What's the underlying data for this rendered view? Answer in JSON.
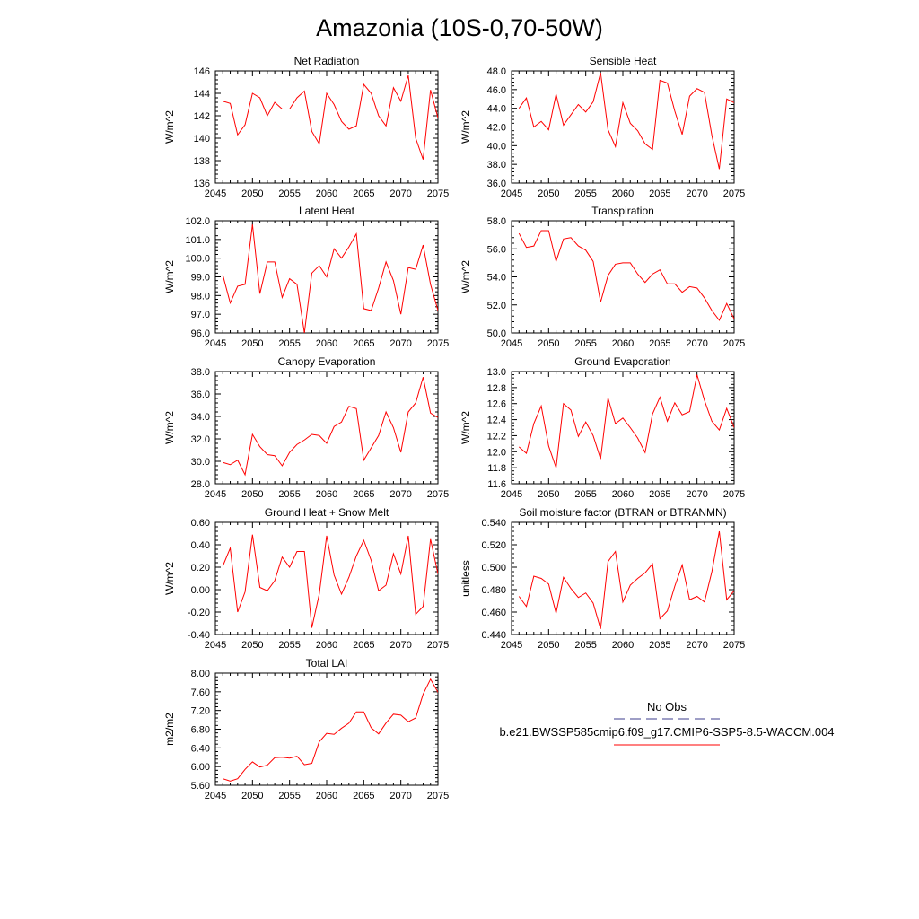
{
  "page": {
    "title": "Amazonia (10S-0,70-50W)"
  },
  "legend": {
    "obs_label": "No Obs",
    "case_label": "b.e21.BWSSP585cmip6.f09_g17.CMIP6-SSP5-8.5-WACCM.004",
    "obs_color": "#3c3c8c",
    "case_color": "#ff0000"
  },
  "chart_data": [
    {
      "type": "line",
      "title": "Net Radiation",
      "ylabel": "W/m^2",
      "xlim": [
        2045,
        2075
      ],
      "ylim": [
        136,
        146
      ],
      "xticks": [
        "2045",
        "2050",
        "2055",
        "2060",
        "2065",
        "2070",
        "2075"
      ],
      "yticks": [
        "136",
        "138",
        "140",
        "142",
        "144",
        "146"
      ],
      "x": [
        2046,
        2047,
        2048,
        2049,
        2050,
        2051,
        2052,
        2053,
        2054,
        2055,
        2056,
        2057,
        2058,
        2059,
        2060,
        2061,
        2062,
        2063,
        2064,
        2065,
        2066,
        2067,
        2068,
        2069,
        2070,
        2071,
        2072,
        2073,
        2074,
        2075
      ],
      "series": [
        {
          "name": "b.e21.BWSSP585cmip6.f09_g17.CMIP6-SSP5-8.5-WACCM.004",
          "values": [
            143.3,
            143.1,
            140.3,
            141.2,
            144.0,
            143.6,
            142.0,
            143.2,
            142.6,
            142.6,
            143.6,
            144.2,
            140.6,
            139.5,
            144.0,
            143.0,
            141.5,
            140.8,
            141.1,
            144.8,
            144.0,
            142.0,
            141.1,
            144.5,
            143.3,
            145.6,
            140.0,
            138.1,
            144.3,
            141.8
          ]
        }
      ]
    },
    {
      "type": "line",
      "title": "Sensible Heat",
      "ylabel": "W/m^2",
      "xlim": [
        2045,
        2075
      ],
      "ylim": [
        36.0,
        48.0
      ],
      "xticks": [
        "2045",
        "2050",
        "2055",
        "2060",
        "2065",
        "2070",
        "2075"
      ],
      "yticks": [
        "36.0",
        "38.0",
        "40.0",
        "42.0",
        "44.0",
        "46.0",
        "48.0"
      ],
      "x": [
        2046,
        2047,
        2048,
        2049,
        2050,
        2051,
        2052,
        2053,
        2054,
        2055,
        2056,
        2057,
        2058,
        2059,
        2060,
        2061,
        2062,
        2063,
        2064,
        2065,
        2066,
        2067,
        2068,
        2069,
        2070,
        2071,
        2072,
        2073,
        2074,
        2075
      ],
      "series": [
        {
          "name": "b.e21.BWSSP585cmip6.f09_g17.CMIP6-SSP5-8.5-WACCM.004",
          "values": [
            44.0,
            45.1,
            42.0,
            42.6,
            41.7,
            45.5,
            42.2,
            43.3,
            44.4,
            43.6,
            44.7,
            47.8,
            41.7,
            39.9,
            44.6,
            42.4,
            41.6,
            40.2,
            39.6,
            47.0,
            46.7,
            43.7,
            41.2,
            45.3,
            46.1,
            45.7,
            41.1,
            37.5,
            45.0,
            44.6
          ]
        }
      ]
    },
    {
      "type": "line",
      "title": "Latent Heat",
      "ylabel": "W/m^2",
      "xlim": [
        2045,
        2075
      ],
      "ylim": [
        96.0,
        102.0
      ],
      "xticks": [
        "2045",
        "2050",
        "2055",
        "2060",
        "2065",
        "2070",
        "2075"
      ],
      "yticks": [
        "96.0",
        "97.0",
        "98.0",
        "99.0",
        "100.0",
        "101.0",
        "102.0"
      ],
      "x": [
        2046,
        2047,
        2048,
        2049,
        2050,
        2051,
        2052,
        2053,
        2054,
        2055,
        2056,
        2057,
        2058,
        2059,
        2060,
        2061,
        2062,
        2063,
        2064,
        2065,
        2066,
        2067,
        2068,
        2069,
        2070,
        2071,
        2072,
        2073,
        2074,
        2075
      ],
      "series": [
        {
          "name": "b.e21.BWSSP585cmip6.f09_g17.CMIP6-SSP5-8.5-WACCM.004",
          "values": [
            99.1,
            97.6,
            98.5,
            98.6,
            101.8,
            98.1,
            99.8,
            99.8,
            97.9,
            98.9,
            98.6,
            96.0,
            99.2,
            99.6,
            99.0,
            100.5,
            100.0,
            100.6,
            101.3,
            97.3,
            97.2,
            98.4,
            99.8,
            98.8,
            97.0,
            99.5,
            99.4,
            100.7,
            98.6,
            97.2
          ]
        }
      ]
    },
    {
      "type": "line",
      "title": "Transpiration",
      "ylabel": "W/m^2",
      "xlim": [
        2045,
        2075
      ],
      "ylim": [
        50.0,
        58.0
      ],
      "xticks": [
        "2045",
        "2050",
        "2055",
        "2060",
        "2065",
        "2070",
        "2075"
      ],
      "yticks": [
        "50.0",
        "52.0",
        "54.0",
        "56.0",
        "58.0"
      ],
      "x": [
        2046,
        2047,
        2048,
        2049,
        2050,
        2051,
        2052,
        2053,
        2054,
        2055,
        2056,
        2057,
        2058,
        2059,
        2060,
        2061,
        2062,
        2063,
        2064,
        2065,
        2066,
        2067,
        2068,
        2069,
        2070,
        2071,
        2072,
        2073,
        2074,
        2075
      ],
      "series": [
        {
          "name": "b.e21.BWSSP585cmip6.f09_g17.CMIP6-SSP5-8.5-WACCM.004",
          "values": [
            57.1,
            56.1,
            56.2,
            57.3,
            57.3,
            55.1,
            56.7,
            56.8,
            56.2,
            55.9,
            55.1,
            52.2,
            54.1,
            54.9,
            55.0,
            55.0,
            54.2,
            53.6,
            54.2,
            54.5,
            53.5,
            53.5,
            52.9,
            53.3,
            53.2,
            52.5,
            51.6,
            50.9,
            52.1,
            51.0
          ]
        }
      ]
    },
    {
      "type": "line",
      "title": "Canopy Evaporation",
      "ylabel": "W/m^2",
      "xlim": [
        2045,
        2075
      ],
      "ylim": [
        28.0,
        38.0
      ],
      "xticks": [
        "2045",
        "2050",
        "2055",
        "2060",
        "2065",
        "2070",
        "2075"
      ],
      "yticks": [
        "28.0",
        "30.0",
        "32.0",
        "34.0",
        "36.0",
        "38.0"
      ],
      "x": [
        2046,
        2047,
        2048,
        2049,
        2050,
        2051,
        2052,
        2053,
        2054,
        2055,
        2056,
        2057,
        2058,
        2059,
        2060,
        2061,
        2062,
        2063,
        2064,
        2065,
        2066,
        2067,
        2068,
        2069,
        2070,
        2071,
        2072,
        2073,
        2074,
        2075
      ],
      "series": [
        {
          "name": "b.e21.BWSSP585cmip6.f09_g17.CMIP6-SSP5-8.5-WACCM.004",
          "values": [
            29.9,
            29.7,
            30.1,
            28.8,
            32.4,
            31.3,
            30.6,
            30.5,
            29.6,
            30.8,
            31.5,
            31.9,
            32.4,
            32.3,
            31.6,
            33.1,
            33.5,
            34.9,
            34.7,
            30.1,
            31.2,
            32.3,
            34.4,
            33.0,
            30.8,
            34.4,
            35.2,
            37.5,
            34.3,
            33.9
          ]
        }
      ]
    },
    {
      "type": "line",
      "title": "Ground Evaporation",
      "ylabel": "W/m^2",
      "xlim": [
        2045,
        2075
      ],
      "ylim": [
        11.6,
        13.0
      ],
      "xticks": [
        "2045",
        "2050",
        "2055",
        "2060",
        "2065",
        "2070",
        "2075"
      ],
      "yticks": [
        "11.6",
        "11.8",
        "12.0",
        "12.2",
        "12.4",
        "12.6",
        "12.8",
        "13.0"
      ],
      "x": [
        2046,
        2047,
        2048,
        2049,
        2050,
        2051,
        2052,
        2053,
        2054,
        2055,
        2056,
        2057,
        2058,
        2059,
        2060,
        2061,
        2062,
        2063,
        2064,
        2065,
        2066,
        2067,
        2068,
        2069,
        2070,
        2071,
        2072,
        2073,
        2074,
        2075
      ],
      "series": [
        {
          "name": "b.e21.BWSSP585cmip6.f09_g17.CMIP6-SSP5-8.5-WACCM.004",
          "values": [
            12.06,
            11.98,
            12.35,
            12.57,
            12.07,
            11.8,
            12.6,
            12.52,
            12.19,
            12.37,
            12.2,
            11.91,
            12.67,
            12.35,
            12.42,
            12.3,
            12.17,
            11.99,
            12.47,
            12.68,
            12.38,
            12.61,
            12.46,
            12.5,
            12.96,
            12.64,
            12.38,
            12.27,
            12.54,
            12.3
          ]
        }
      ]
    },
    {
      "type": "line",
      "title": "Ground Heat + Snow Melt",
      "ylabel": "W/m^2",
      "xlim": [
        2045,
        2075
      ],
      "ylim": [
        -0.4,
        0.6
      ],
      "xticks": [
        "2045",
        "2050",
        "2055",
        "2060",
        "2065",
        "2070",
        "2075"
      ],
      "yticks": [
        "-0.40",
        "-0.20",
        "0.00",
        "0.20",
        "0.40",
        "0.60"
      ],
      "x": [
        2046,
        2047,
        2048,
        2049,
        2050,
        2051,
        2052,
        2053,
        2054,
        2055,
        2056,
        2057,
        2058,
        2059,
        2060,
        2061,
        2062,
        2063,
        2064,
        2065,
        2066,
        2067,
        2068,
        2069,
        2070,
        2071,
        2072,
        2073,
        2074,
        2075
      ],
      "series": [
        {
          "name": "b.e21.BWSSP585cmip6.f09_g17.CMIP6-SSP5-8.5-WACCM.004",
          "values": [
            0.21,
            0.37,
            -0.2,
            -0.02,
            0.49,
            0.02,
            -0.01,
            0.08,
            0.29,
            0.2,
            0.34,
            0.34,
            -0.34,
            -0.04,
            0.48,
            0.13,
            -0.04,
            0.11,
            0.3,
            0.44,
            0.26,
            -0.01,
            0.04,
            0.32,
            0.14,
            0.48,
            -0.22,
            -0.15,
            0.45,
            0.14
          ]
        }
      ]
    },
    {
      "type": "line",
      "title": "Soil moisture factor (BTRAN or BTRANMN)",
      "ylabel": "unitless",
      "xlim": [
        2045,
        2075
      ],
      "ylim": [
        0.44,
        0.54
      ],
      "xticks": [
        "2045",
        "2050",
        "2055",
        "2060",
        "2065",
        "2070",
        "2075"
      ],
      "yticks": [
        "0.440",
        "0.460",
        "0.480",
        "0.500",
        "0.520",
        "0.540"
      ],
      "x": [
        2046,
        2047,
        2048,
        2049,
        2050,
        2051,
        2052,
        2053,
        2054,
        2055,
        2056,
        2057,
        2058,
        2059,
        2060,
        2061,
        2062,
        2063,
        2064,
        2065,
        2066,
        2067,
        2068,
        2069,
        2070,
        2071,
        2072,
        2073,
        2074,
        2075
      ],
      "series": [
        {
          "name": "b.e21.BWSSP585cmip6.f09_g17.CMIP6-SSP5-8.5-WACCM.004",
          "values": [
            0.474,
            0.465,
            0.492,
            0.49,
            0.485,
            0.459,
            0.491,
            0.481,
            0.473,
            0.477,
            0.468,
            0.445,
            0.505,
            0.514,
            0.469,
            0.484,
            0.49,
            0.495,
            0.503,
            0.454,
            0.461,
            0.483,
            0.502,
            0.471,
            0.474,
            0.469,
            0.496,
            0.532,
            0.471,
            0.479
          ]
        }
      ]
    },
    {
      "type": "line",
      "title": "Total LAI",
      "ylabel": "m2/m2",
      "xlim": [
        2045,
        2075
      ],
      "ylim": [
        5.6,
        8.0
      ],
      "xticks": [
        "2045",
        "2050",
        "2055",
        "2060",
        "2065",
        "2070",
        "2075"
      ],
      "yticks": [
        "5.60",
        "6.00",
        "6.40",
        "6.80",
        "7.20",
        "7.60",
        "8.00"
      ],
      "x": [
        2046,
        2047,
        2048,
        2049,
        2050,
        2051,
        2052,
        2053,
        2054,
        2055,
        2056,
        2057,
        2058,
        2059,
        2060,
        2061,
        2062,
        2063,
        2064,
        2065,
        2066,
        2067,
        2068,
        2069,
        2070,
        2071,
        2072,
        2073,
        2074,
        2075
      ],
      "series": [
        {
          "name": "b.e21.BWSSP585cmip6.f09_g17.CMIP6-SSP5-8.5-WACCM.004",
          "values": [
            5.74,
            5.69,
            5.74,
            5.94,
            6.1,
            5.99,
            6.03,
            6.19,
            6.2,
            6.18,
            6.22,
            6.04,
            6.07,
            6.53,
            6.71,
            6.69,
            6.82,
            6.93,
            7.17,
            7.17,
            6.83,
            6.7,
            6.93,
            7.12,
            7.1,
            6.96,
            7.04,
            7.55,
            7.87,
            7.59
          ]
        }
      ]
    }
  ]
}
